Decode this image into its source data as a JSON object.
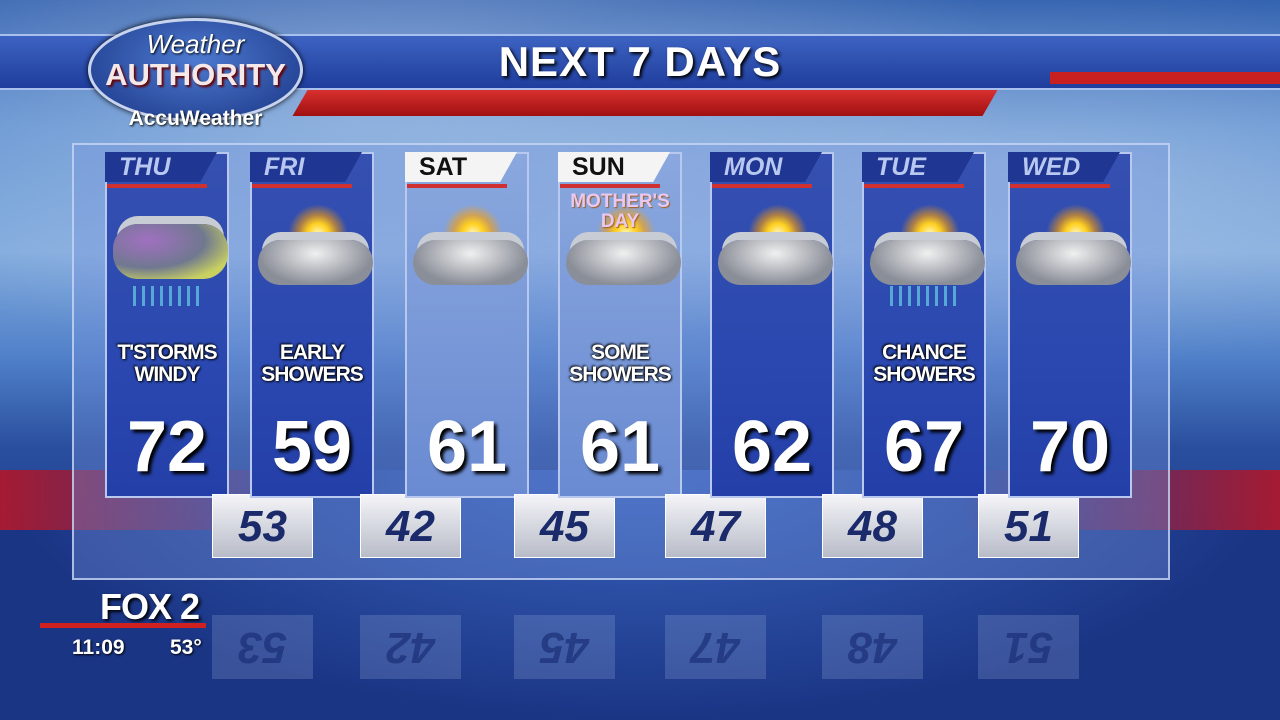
{
  "header": {
    "title": "NEXT 7 DAYS"
  },
  "logo": {
    "line1": "Weather",
    "line2": "AUTHORITY",
    "line3": "AccuWeather"
  },
  "colors": {
    "accent_red": "#d03030",
    "header_blue": "#1f3692",
    "column_blue": "#2a48b0"
  },
  "days": [
    {
      "day": "THU",
      "condition": "T'STORMS\nWINDY",
      "high": "72",
      "low": "53",
      "icon": "thunderstorm-icon",
      "header_style": "blue"
    },
    {
      "day": "FRI",
      "condition": "EARLY\nSHOWERS",
      "high": "59",
      "low": "42",
      "icon": "cloudy-sun-icon",
      "header_style": "blue"
    },
    {
      "day": "SAT",
      "condition": "",
      "high": "61",
      "low": "45",
      "icon": "partly-sunny-icon",
      "header_style": "white"
    },
    {
      "day": "SUN",
      "condition": "SOME\nSHOWERS",
      "high": "61",
      "low": "47",
      "icon": "partly-sunny-icon",
      "header_style": "white",
      "note": "MOTHER'S DAY"
    },
    {
      "day": "MON",
      "condition": "",
      "high": "62",
      "low": "48",
      "icon": "partly-sunny-icon",
      "header_style": "blue"
    },
    {
      "day": "TUE",
      "condition": "CHANCE\nSHOWERS",
      "high": "67",
      "low": "51",
      "icon": "partly-sunny-showers-icon",
      "header_style": "blue"
    },
    {
      "day": "WED",
      "condition": "",
      "high": "70",
      "icon": "partly-sunny-icon",
      "header_style": "blue"
    }
  ],
  "station": {
    "name": "FOX 2",
    "time": "11:09",
    "temperature": "53°"
  }
}
